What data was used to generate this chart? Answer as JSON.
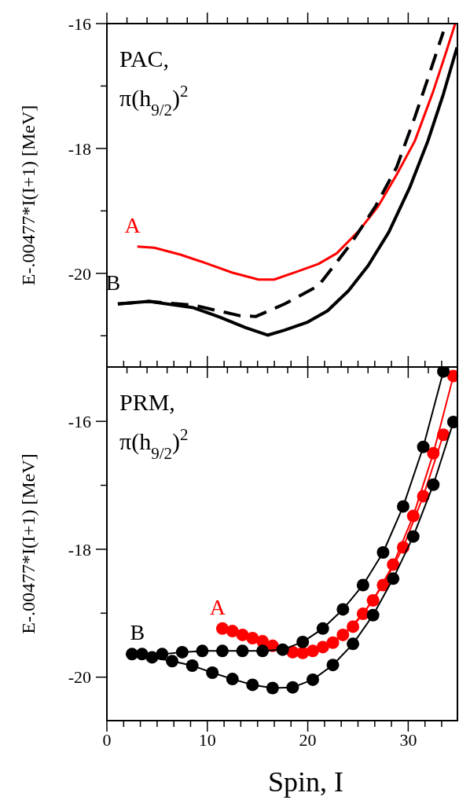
{
  "chart_data": [
    {
      "type": "line",
      "ylabel": "E-.00477*I(I+1) [MeV]",
      "annotations": [
        "PAC,",
        "π(h$_{9/2}$)$^{2}$"
      ],
      "xlim": [
        0,
        34.9
      ],
      "xticks": [
        {
          "value": 0,
          "label": null
        },
        {
          "value": 2,
          "label": null
        },
        {
          "value": 4,
          "label": null
        },
        {
          "value": 6,
          "label": null
        },
        {
          "value": 8,
          "label": null
        },
        {
          "value": 10,
          "label": null
        },
        {
          "value": 12,
          "label": null
        },
        {
          "value": 14,
          "label": null
        },
        {
          "value": 16,
          "label": null
        },
        {
          "value": 18,
          "label": null
        },
        {
          "value": 20,
          "label": null
        },
        {
          "value": 22,
          "label": null
        },
        {
          "value": 24,
          "label": null
        },
        {
          "value": 26,
          "label": null
        },
        {
          "value": 28,
          "label": null
        },
        {
          "value": 30,
          "label": null
        },
        {
          "value": 32,
          "label": null
        },
        {
          "value": 34,
          "label": null
        }
      ],
      "ylim": [
        -21.5,
        -16
      ],
      "yticks": [
        -16,
        {
          "value": -17,
          "label": null
        },
        -18,
        {
          "value": -19,
          "label": null
        },
        -20,
        {
          "value": -21,
          "label": null
        }
      ],
      "tick_labels": "y",
      "grid": false,
      "marker": "none",
      "series": [
        {
          "name": "A",
          "color": "#ff0000",
          "line_style": "solid",
          "x": [
            3.03,
            4.72,
            7.32,
            9.91,
            12.5,
            15.1,
            16.65,
            18.99,
            21.06,
            22.88,
            25.2,
            27.03,
            28.85,
            30.66,
            32.48,
            33.77,
            34.68
          ],
          "values": [
            -19.57,
            -19.59,
            -19.7,
            -19.84,
            -19.99,
            -20.1,
            -20.1,
            -19.97,
            -19.85,
            -19.68,
            -19.3,
            -18.92,
            -18.42,
            -17.88,
            -17.09,
            -16.46,
            -16.0
          ]
        },
        {
          "name": "B",
          "color": "#000000",
          "line_style": "solid",
          "x": [
            1.09,
            4.2,
            8.61,
            11.2,
            13.8,
            16.0,
            17.69,
            20.0,
            21.97,
            24.05,
            26.0,
            28.07,
            30.14,
            31.96,
            33.5,
            34.86
          ],
          "values": [
            -20.49,
            -20.45,
            -20.55,
            -20.7,
            -20.87,
            -20.99,
            -20.91,
            -20.78,
            -20.6,
            -20.28,
            -19.88,
            -19.34,
            -18.63,
            -17.88,
            -17.13,
            -16.38
          ]
        },
        {
          "color": "#000000",
          "line_style": "dashed",
          "x": [
            1.09,
            4.2,
            8.61,
            13.28,
            14.84,
            17.69,
            21.06,
            24.18,
            26.77,
            28.85,
            30.66,
            31.96,
            33.5
          ],
          "values": [
            -20.49,
            -20.45,
            -20.51,
            -20.68,
            -20.69,
            -20.49,
            -20.2,
            -19.55,
            -18.92,
            -18.3,
            -17.5,
            -16.88,
            -16.13
          ]
        }
      ]
    },
    {
      "type": "line",
      "xlabel": "Spin, I",
      "ylabel": "E-.00477*I(I+1) [MeV]",
      "annotations": [
        "PRM,",
        "π(h$_{9/2}$)$^{2}$"
      ],
      "xlim": [
        0,
        34.9
      ],
      "xticks": [
        0,
        {
          "value": 1.67,
          "label": null
        },
        {
          "value": 3.33,
          "label": null
        },
        {
          "value": 5,
          "label": null
        },
        {
          "value": 6.67,
          "label": null
        },
        {
          "value": 8.33,
          "label": null
        },
        10,
        {
          "value": 11.67,
          "label": null
        },
        {
          "value": 13.33,
          "label": null
        },
        {
          "value": 15,
          "label": null
        },
        {
          "value": 16.67,
          "label": null
        },
        {
          "value": 18.33,
          "label": null
        },
        20,
        {
          "value": 21.67,
          "label": null
        },
        {
          "value": 23.33,
          "label": null
        },
        {
          "value": 25,
          "label": null
        },
        {
          "value": 26.67,
          "label": null
        },
        {
          "value": 28.33,
          "label": null
        },
        30,
        {
          "value": 31.67,
          "label": null
        },
        {
          "value": 33.33,
          "label": null
        }
      ],
      "ylim": [
        -20.68,
        -15.15
      ],
      "yticks": [
        -16,
        {
          "value": -17,
          "label": null
        },
        -18,
        {
          "value": -19,
          "label": null
        },
        -20
      ],
      "grid": false,
      "marker": "circle",
      "series": [
        {
          "name": "A",
          "color": "#ff0000",
          "line_style": "solid",
          "x": [
            11.5,
            13.5,
            15.5,
            17.5,
            19.5,
            21.5,
            23.5,
            25.5,
            27.5,
            29.5,
            31.5,
            33.5
          ],
          "values": [
            -19.24,
            -19.34,
            -19.44,
            null,
            -19.62,
            -19.53,
            -19.34,
            -19.01,
            -18.56,
            -17.97,
            -17.17,
            -16.21
          ]
        },
        {
          "color": "#ff0000",
          "line_style": "solid",
          "x": [
            12.5,
            14.5,
            16.5,
            18.5,
            20.5,
            22.5,
            24.5,
            26.5,
            28.5,
            30.5,
            32.5,
            34.5
          ],
          "values": [
            -19.28,
            -19.39,
            -19.51,
            -19.61,
            -19.59,
            -19.46,
            -19.21,
            -18.8,
            -18.24,
            -17.48,
            -16.5,
            -15.29
          ]
        },
        {
          "name": "B",
          "color": "#000000",
          "line_style": "solid",
          "x": [
            3.5,
            5.5,
            7.5,
            9.5,
            11.5,
            13.5,
            15.5,
            17.5,
            19.5,
            21.5,
            23.5,
            25.5,
            27.5,
            29.5,
            31.5,
            33.5
          ],
          "values": [
            -19.64,
            -19.64,
            -19.61,
            -19.59,
            -19.59,
            -19.59,
            -19.59,
            -19.57,
            -19.45,
            -19.24,
            -18.94,
            -18.56,
            -18.05,
            -17.33,
            -16.4,
            -15.22
          ]
        },
        {
          "color": "#000000",
          "line_style": "solid",
          "x": [
            2.5,
            4.5,
            6.5,
            8.5,
            10.5,
            12.5,
            14.5,
            16.5,
            18.5,
            20.5,
            22.5,
            24.5,
            26.5,
            28.5,
            30.5,
            32.5,
            34.5
          ],
          "values": [
            -19.64,
            -19.69,
            -19.75,
            -19.82,
            -19.93,
            -20.03,
            -20.12,
            -20.17,
            -20.16,
            -20.04,
            -19.81,
            -19.48,
            -19.03,
            -18.46,
            -17.8,
            -16.99,
            -16.01
          ]
        }
      ]
    }
  ]
}
